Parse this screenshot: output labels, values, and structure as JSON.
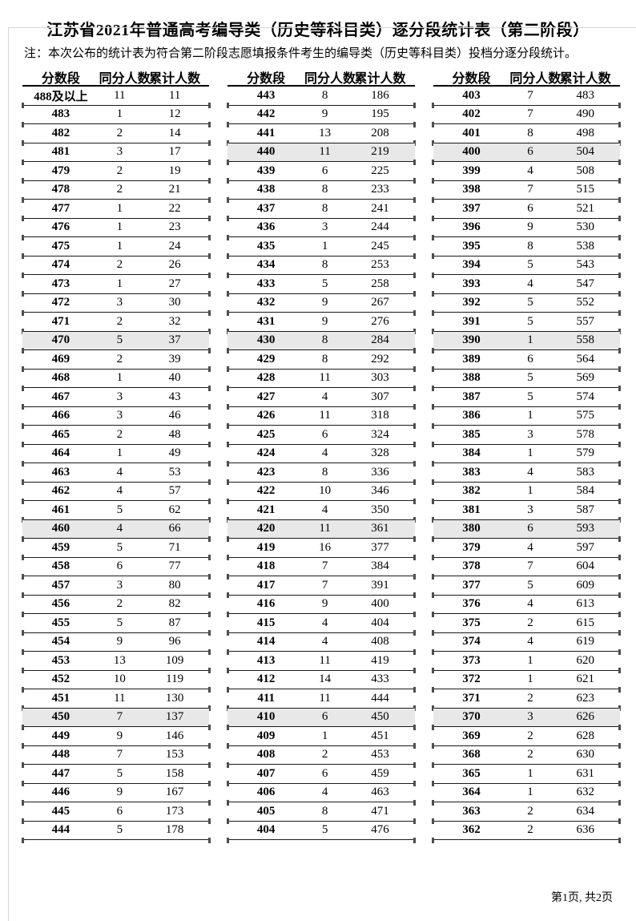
{
  "page": {
    "title": "江苏省2021年普通高考编导类（历史等科目类）逐分段统计表（第二阶段）",
    "note": "注：本次公布的统计表为符合第二阶段志愿填报条件考生的编导类（历史等科目类）投档分逐分段统计。",
    "footer_page_label": "第1页, 共2页"
  },
  "table_columns": [
    "分数段",
    "同分人数",
    "累计人数"
  ],
  "colors": {
    "shaded_row": "#e8e8e8",
    "row_line": "#1a1a1a",
    "page_edge": "#d6d6d6"
  },
  "tables": [
    {
      "name": "segment-1",
      "rows": [
        [
          "488及以上",
          11,
          11
        ],
        [
          "483",
          1,
          12
        ],
        [
          "482",
          2,
          14
        ],
        [
          "481",
          3,
          17
        ],
        [
          "479",
          2,
          19
        ],
        [
          "478",
          2,
          21
        ],
        [
          "477",
          1,
          22
        ],
        [
          "476",
          1,
          23
        ],
        [
          "475",
          1,
          24
        ],
        [
          "474",
          2,
          26
        ],
        [
          "473",
          1,
          27
        ],
        [
          "472",
          3,
          30
        ],
        [
          "471",
          2,
          32
        ],
        [
          "470",
          5,
          37
        ],
        [
          "469",
          2,
          39
        ],
        [
          "468",
          1,
          40
        ],
        [
          "467",
          3,
          43
        ],
        [
          "466",
          3,
          46
        ],
        [
          "465",
          2,
          48
        ],
        [
          "464",
          1,
          49
        ],
        [
          "463",
          4,
          53
        ],
        [
          "462",
          4,
          57
        ],
        [
          "461",
          5,
          62
        ],
        [
          "460",
          4,
          66
        ],
        [
          "459",
          5,
          71
        ],
        [
          "458",
          6,
          77
        ],
        [
          "457",
          3,
          80
        ],
        [
          "456",
          2,
          82
        ],
        [
          "455",
          5,
          87
        ],
        [
          "454",
          9,
          96
        ],
        [
          "453",
          13,
          109
        ],
        [
          "452",
          10,
          119
        ],
        [
          "451",
          11,
          130
        ],
        [
          "450",
          7,
          137
        ],
        [
          "449",
          9,
          146
        ],
        [
          "448",
          7,
          153
        ],
        [
          "447",
          5,
          158
        ],
        [
          "446",
          9,
          167
        ],
        [
          "445",
          6,
          173
        ],
        [
          "444",
          5,
          178
        ]
      ]
    },
    {
      "name": "segment-2",
      "rows": [
        [
          "443",
          8,
          186
        ],
        [
          "442",
          9,
          195
        ],
        [
          "441",
          13,
          208
        ],
        [
          "440",
          11,
          219
        ],
        [
          "439",
          6,
          225
        ],
        [
          "438",
          8,
          233
        ],
        [
          "437",
          8,
          241
        ],
        [
          "436",
          3,
          244
        ],
        [
          "435",
          1,
          245
        ],
        [
          "434",
          8,
          253
        ],
        [
          "433",
          5,
          258
        ],
        [
          "432",
          9,
          267
        ],
        [
          "431",
          9,
          276
        ],
        [
          "430",
          8,
          284
        ],
        [
          "429",
          8,
          292
        ],
        [
          "428",
          11,
          303
        ],
        [
          "427",
          4,
          307
        ],
        [
          "426",
          11,
          318
        ],
        [
          "425",
          6,
          324
        ],
        [
          "424",
          4,
          328
        ],
        [
          "423",
          8,
          336
        ],
        [
          "422",
          10,
          346
        ],
        [
          "421",
          4,
          350
        ],
        [
          "420",
          11,
          361
        ],
        [
          "419",
          16,
          377
        ],
        [
          "418",
          7,
          384
        ],
        [
          "417",
          7,
          391
        ],
        [
          "416",
          9,
          400
        ],
        [
          "415",
          4,
          404
        ],
        [
          "414",
          4,
          408
        ],
        [
          "413",
          11,
          419
        ],
        [
          "412",
          14,
          433
        ],
        [
          "411",
          11,
          444
        ],
        [
          "410",
          6,
          450
        ],
        [
          "409",
          1,
          451
        ],
        [
          "408",
          2,
          453
        ],
        [
          "407",
          6,
          459
        ],
        [
          "406",
          4,
          463
        ],
        [
          "405",
          8,
          471
        ],
        [
          "404",
          5,
          476
        ]
      ]
    },
    {
      "name": "segment-3",
      "rows": [
        [
          "403",
          7,
          483
        ],
        [
          "402",
          7,
          490
        ],
        [
          "401",
          8,
          498
        ],
        [
          "400",
          6,
          504
        ],
        [
          "399",
          4,
          508
        ],
        [
          "398",
          7,
          515
        ],
        [
          "397",
          6,
          521
        ],
        [
          "396",
          9,
          530
        ],
        [
          "395",
          8,
          538
        ],
        [
          "394",
          5,
          543
        ],
        [
          "393",
          4,
          547
        ],
        [
          "392",
          5,
          552
        ],
        [
          "391",
          5,
          557
        ],
        [
          "390",
          1,
          558
        ],
        [
          "389",
          6,
          564
        ],
        [
          "388",
          5,
          569
        ],
        [
          "387",
          5,
          574
        ],
        [
          "386",
          1,
          575
        ],
        [
          "385",
          3,
          578
        ],
        [
          "384",
          1,
          579
        ],
        [
          "383",
          4,
          583
        ],
        [
          "382",
          1,
          584
        ],
        [
          "381",
          3,
          587
        ],
        [
          "380",
          6,
          593
        ],
        [
          "379",
          4,
          597
        ],
        [
          "378",
          7,
          604
        ],
        [
          "377",
          5,
          609
        ],
        [
          "376",
          4,
          613
        ],
        [
          "375",
          2,
          615
        ],
        [
          "374",
          4,
          619
        ],
        [
          "373",
          1,
          620
        ],
        [
          "372",
          1,
          621
        ],
        [
          "371",
          2,
          623
        ],
        [
          "370",
          3,
          626
        ],
        [
          "369",
          2,
          628
        ],
        [
          "368",
          2,
          630
        ],
        [
          "365",
          1,
          631
        ],
        [
          "364",
          1,
          632
        ],
        [
          "363",
          2,
          634
        ],
        [
          "362",
          2,
          636
        ]
      ]
    }
  ]
}
